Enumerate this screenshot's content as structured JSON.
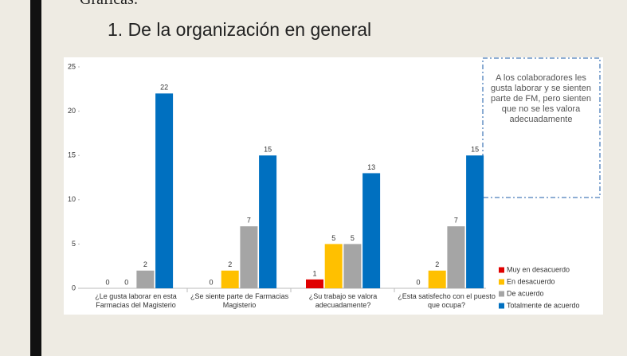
{
  "slide": {
    "heading": "Gráficas:",
    "title": "1. De la organización en general"
  },
  "chart_data": {
    "type": "bar",
    "categories": [
      "¿Le gusta laborar en esta Farmacias del Magisterio",
      "¿Se siente parte de Farmacias Magisterio",
      "¿Su trabajo se valora adecuadamente?",
      "¿Esta satisfecho con el puesto que ocupa?"
    ],
    "series": [
      {
        "name": "Muy en desacuerdo",
        "color": "#e00000",
        "values": [
          0,
          0,
          1,
          0
        ]
      },
      {
        "name": "En desacuerdo",
        "color": "#ffc000",
        "values": [
          0,
          2,
          5,
          2
        ]
      },
      {
        "name": "De acuerdo",
        "color": "#a5a5a5",
        "values": [
          2,
          7,
          5,
          7
        ]
      },
      {
        "name": "Totalmente de acuerdo",
        "color": "#0070c0",
        "values": [
          22,
          15,
          13,
          15
        ]
      }
    ],
    "ylim": [
      0,
      25
    ],
    "yticks": [
      0,
      5,
      10,
      15,
      20,
      25
    ],
    "grid": false,
    "legend": "lower right",
    "annotation": "A los colaboradores les gusta laborar y se sienten parte de FM, pero sienten que no se les valora adecuadamente"
  }
}
